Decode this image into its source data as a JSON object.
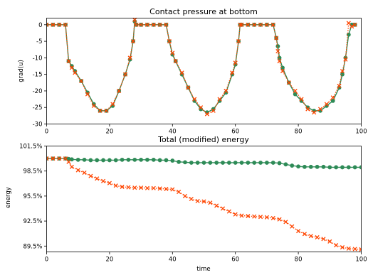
{
  "chart_data": [
    {
      "type": "line",
      "title": "Contact pressure at bottom",
      "xlabel": "",
      "ylabel": "grad(u)",
      "xlim": [
        0,
        100
      ],
      "ylim": [
        -30,
        2
      ],
      "xticks": [
        0,
        20,
        40,
        60,
        80,
        100
      ],
      "yticks": [
        -30,
        -25,
        -20,
        -15,
        -10,
        -5,
        0
      ],
      "grid": false,
      "series": [
        {
          "color": "#2e8b57",
          "style": "solid line with circle markers",
          "x": [
            0,
            2,
            4,
            6,
            7,
            8,
            9,
            11,
            13,
            15,
            17,
            19,
            21,
            23,
            25,
            26.5,
            27.5,
            28,
            28.5,
            30,
            32,
            34,
            36,
            38,
            39,
            40,
            41,
            43,
            45,
            47,
            49,
            51,
            53,
            55,
            57,
            59,
            60,
            61,
            61.5,
            62,
            64,
            66,
            68,
            70,
            72,
            73,
            73.5,
            74,
            75,
            77,
            79,
            81,
            83,
            85,
            87,
            89,
            91,
            93,
            94,
            95,
            96,
            97,
            98
          ],
          "y": [
            0,
            0,
            0,
            0,
            -11,
            -12.5,
            -14,
            -17,
            -20.5,
            -24,
            -26,
            -26,
            -24.5,
            -20,
            -15,
            -10.5,
            -5,
            1,
            0,
            0,
            0,
            0,
            0,
            0,
            -5,
            -9,
            -11,
            -15,
            -19,
            -23,
            -25.5,
            -26.5,
            -25.5,
            -23,
            -20.5,
            -15,
            -12,
            -5,
            0,
            0,
            0,
            0,
            0,
            0,
            0,
            -4,
            -6.5,
            -10,
            -13,
            -17.5,
            -21,
            -23,
            -25,
            -26,
            -26,
            -24.5,
            -23,
            -19,
            -15,
            -10,
            -3,
            0,
            0
          ]
        },
        {
          "color": "#ff4500",
          "style": "dotted line with x markers",
          "x": [
            0,
            2,
            4,
            6,
            7,
            8,
            9,
            11,
            13,
            15,
            17,
            19,
            21,
            23,
            25,
            26.5,
            27.5,
            28,
            28.5,
            30,
            32,
            34,
            36,
            38,
            39,
            40,
            41,
            43,
            45,
            47,
            49,
            51,
            53,
            55,
            57,
            59,
            60,
            61,
            61.5,
            62,
            64,
            66,
            68,
            70,
            72,
            73,
            73.5,
            74,
            75,
            77,
            79,
            81,
            83,
            85,
            87,
            89,
            91,
            93,
            94,
            95,
            96,
            97,
            98
          ],
          "y": [
            0,
            0,
            0,
            0,
            -11,
            -13,
            -14.5,
            -17,
            -21,
            -24.5,
            -26,
            -26,
            -24,
            -20,
            -15,
            -10,
            -5,
            1.5,
            0,
            0,
            0,
            0,
            0,
            0,
            -5,
            -8.5,
            -11,
            -14.5,
            -19,
            -22.5,
            -25,
            -27,
            -26,
            -22.5,
            -20,
            -14.5,
            -11.5,
            -5,
            0,
            0,
            0,
            0,
            0,
            0,
            0,
            -4,
            -8,
            -11,
            -14,
            -17.5,
            -20,
            -22.5,
            -25.5,
            -26.5,
            -25.5,
            -24,
            -22,
            -18.5,
            -14,
            -10.5,
            0.5,
            -0.5,
            0
          ]
        }
      ]
    },
    {
      "type": "line",
      "title": "Total (modified) energy",
      "xlabel": "time",
      "ylabel": "energy",
      "xlim": [
        0,
        100
      ],
      "ylim": [
        88.8,
        101.5
      ],
      "xticks": [
        0,
        20,
        40,
        60,
        80,
        100
      ],
      "yticks": [
        89.5,
        92.5,
        95.5,
        98.5,
        101.5
      ],
      "ytick_labels": [
        "89.5%",
        "92.5%",
        "95.5%",
        "98.5%",
        "101.5%"
      ],
      "grid": false,
      "series": [
        {
          "color": "#2e8b57",
          "style": "solid line with circle markers",
          "x": [
            0,
            2,
            4,
            6,
            7,
            8,
            10,
            12,
            14,
            16,
            18,
            20,
            22,
            24,
            26,
            28,
            30,
            32,
            34,
            36,
            38,
            40,
            42,
            44,
            46,
            48,
            50,
            52,
            54,
            56,
            58,
            60,
            62,
            64,
            66,
            68,
            70,
            72,
            74,
            76,
            78,
            80,
            82,
            84,
            86,
            88,
            90,
            92,
            94,
            96,
            98,
            100
          ],
          "y": [
            100.0,
            100.0,
            100.0,
            100.0,
            99.95,
            99.9,
            99.85,
            99.85,
            99.8,
            99.8,
            99.8,
            99.8,
            99.8,
            99.85,
            99.85,
            99.85,
            99.85,
            99.85,
            99.85,
            99.8,
            99.8,
            99.75,
            99.6,
            99.55,
            99.5,
            99.5,
            99.5,
            99.5,
            99.5,
            99.5,
            99.5,
            99.5,
            99.5,
            99.5,
            99.5,
            99.5,
            99.5,
            99.5,
            99.45,
            99.3,
            99.15,
            99.05,
            99.0,
            99.0,
            99.0,
            99.0,
            98.95,
            98.95,
            98.95,
            98.95,
            98.95,
            98.95
          ]
        },
        {
          "color": "#ff4500",
          "style": "dotted line with x markers",
          "x": [
            0,
            2,
            4,
            6,
            7,
            8,
            10,
            12,
            14,
            16,
            18,
            20,
            22,
            24,
            26,
            28,
            30,
            32,
            34,
            36,
            38,
            40,
            42,
            44,
            46,
            48,
            50,
            52,
            54,
            56,
            58,
            60,
            62,
            64,
            66,
            68,
            70,
            72,
            74,
            76,
            78,
            80,
            82,
            84,
            86,
            88,
            90,
            92,
            94,
            96,
            98,
            100
          ],
          "y": [
            100.0,
            100.0,
            100.0,
            100.0,
            99.6,
            99.0,
            98.6,
            98.3,
            97.9,
            97.6,
            97.3,
            97.05,
            96.75,
            96.6,
            96.55,
            96.5,
            96.5,
            96.45,
            96.45,
            96.4,
            96.35,
            96.3,
            96.0,
            95.5,
            95.15,
            94.9,
            94.85,
            94.7,
            94.35,
            94.0,
            93.65,
            93.3,
            93.15,
            93.1,
            93.05,
            93.0,
            92.95,
            92.85,
            92.7,
            92.4,
            91.85,
            91.3,
            90.95,
            90.7,
            90.55,
            90.35,
            90.05,
            89.6,
            89.35,
            89.2,
            89.15,
            89.1
          ]
        }
      ]
    }
  ]
}
